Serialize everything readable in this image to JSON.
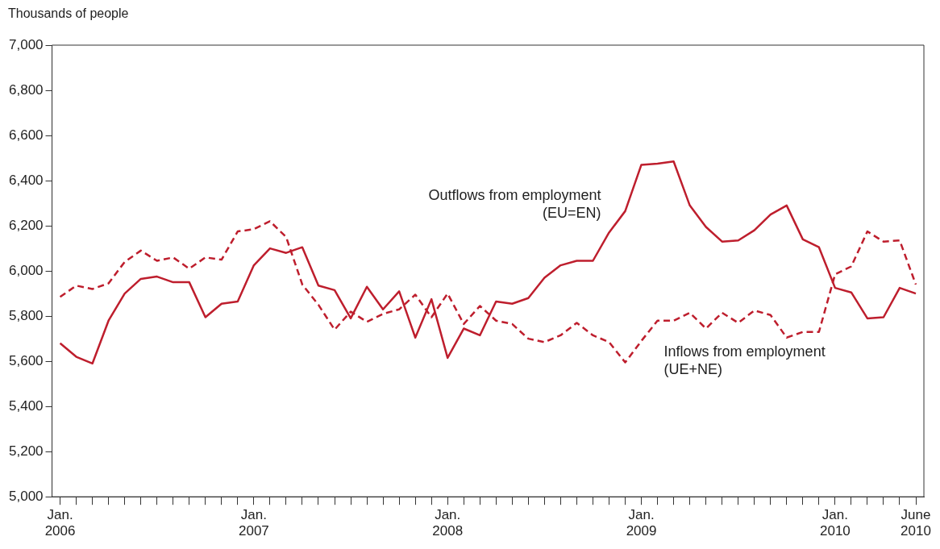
{
  "chart_data": {
    "type": "line",
    "ylabel": "Thousands of people",
    "categories": [
      "Jan.\n2006",
      null,
      null,
      null,
      null,
      null,
      null,
      null,
      null,
      null,
      null,
      null,
      "Jan.\n2007",
      null,
      null,
      null,
      null,
      null,
      null,
      null,
      null,
      null,
      null,
      null,
      "Jan.\n2008",
      null,
      null,
      null,
      null,
      null,
      null,
      null,
      null,
      null,
      null,
      null,
      "Jan.\n2009",
      null,
      null,
      null,
      null,
      null,
      null,
      null,
      null,
      null,
      null,
      null,
      "Jan.\n2010",
      null,
      null,
      null,
      null,
      "June\n2010"
    ],
    "series": [
      {
        "name": "Outflows from employment\n(EU=EN)",
        "color": "#be1e2d",
        "line_style": "solid",
        "values": [
          5680,
          5620,
          5590,
          5780,
          5900,
          5965,
          5975,
          5950,
          5950,
          5795,
          5855,
          5865,
          6025,
          6100,
          6080,
          6105,
          5935,
          5915,
          5790,
          5930,
          5830,
          5910,
          5705,
          5875,
          5615,
          5745,
          5715,
          5865,
          5855,
          5880,
          5970,
          6025,
          6045,
          6045,
          6170,
          6265,
          6470,
          6475,
          6485,
          6290,
          6195,
          6130,
          6135,
          6180,
          6250,
          6290,
          6140,
          6105,
          5925,
          5905,
          5790,
          5795,
          5925,
          5900
        ]
      },
      {
        "name": "Inflows from employment\n(UE+NE)",
        "color": "#be1e2d",
        "line_style": "dashed",
        "values": [
          5885,
          5935,
          5920,
          5945,
          6040,
          6090,
          6045,
          6060,
          6010,
          6060,
          6050,
          6175,
          6185,
          6220,
          6150,
          5940,
          5850,
          5740,
          5820,
          5775,
          5810,
          5830,
          5895,
          5795,
          5900,
          5765,
          5845,
          5780,
          5765,
          5700,
          5685,
          5715,
          5770,
          5715,
          5685,
          5595,
          5690,
          5780,
          5780,
          5815,
          5745,
          5815,
          5770,
          5825,
          5805,
          5705,
          5730,
          5730,
          5985,
          6020,
          6175,
          6130,
          6135,
          5940
        ]
      }
    ],
    "ylim": [
      5000,
      7000
    ],
    "yticks": [
      {
        "value": 5000,
        "label": "5,000"
      },
      {
        "value": 5200,
        "label": "5,200"
      },
      {
        "value": 5400,
        "label": "5,400"
      },
      {
        "value": 5600,
        "label": "5,600"
      },
      {
        "value": 5800,
        "label": "5,800"
      },
      {
        "value": 6000,
        "label": "6,000"
      },
      {
        "value": 6200,
        "label": "6,200"
      },
      {
        "value": 6400,
        "label": "6,400"
      },
      {
        "value": 6600,
        "label": "6,600"
      },
      {
        "value": 6800,
        "label": "6,800"
      },
      {
        "value": 7000,
        "label": "7,000"
      }
    ],
    "grid": false,
    "legend": false,
    "marker": "none"
  }
}
